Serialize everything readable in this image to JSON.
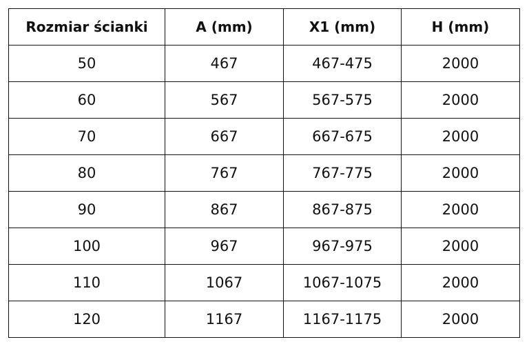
{
  "table": {
    "headers": [
      "Rozmiar ścianki",
      "A (mm)",
      "X1 (mm)",
      "H (mm)"
    ],
    "rows": [
      [
        "50",
        "467",
        "467-475",
        "2000"
      ],
      [
        "60",
        "567",
        "567-575",
        "2000"
      ],
      [
        "70",
        "667",
        "667-675",
        "2000"
      ],
      [
        "80",
        "767",
        "767-775",
        "2000"
      ],
      [
        "90",
        "867",
        "867-875",
        "2000"
      ],
      [
        "100",
        "967",
        "967-975",
        "2000"
      ],
      [
        "110",
        "1067",
        "1067-1075",
        "2000"
      ],
      [
        "120",
        "1167",
        "1167-1175",
        "2000"
      ]
    ]
  }
}
